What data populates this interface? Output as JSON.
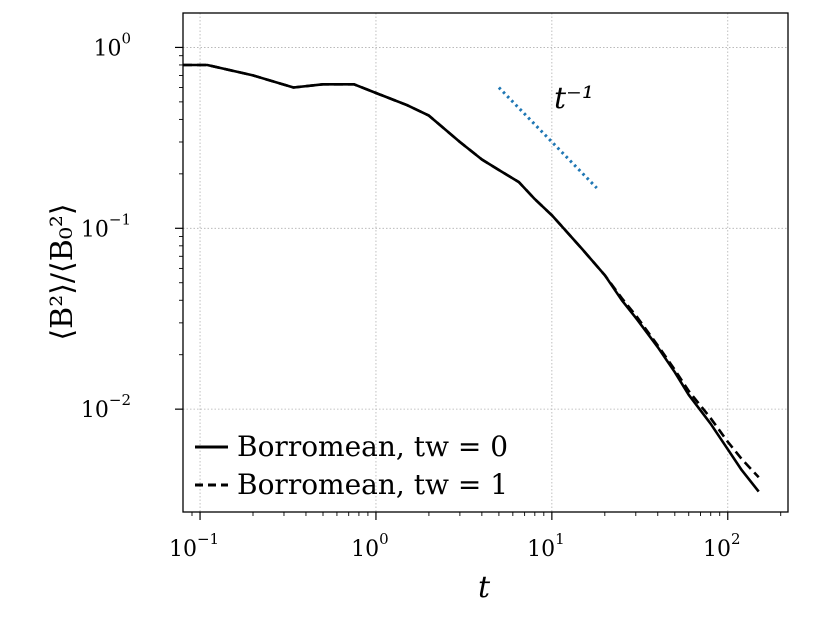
{
  "chart_data": {
    "type": "line",
    "xscale": "log",
    "yscale": "log",
    "xlim": [
      0.08,
      220
    ],
    "ylim": [
      0.0027,
      1.55
    ],
    "grid": true,
    "xlabel": "t",
    "ylabel": "⟨B²⟩/⟨B₀²⟩",
    "x_ticks": [
      {
        "base": "10",
        "exp": "−1",
        "value": 0.1
      },
      {
        "base": "10",
        "exp": "0",
        "value": 1
      },
      {
        "base": "10",
        "exp": "1",
        "value": 10
      },
      {
        "base": "10",
        "exp": "2",
        "value": 100
      }
    ],
    "y_ticks": [
      {
        "base": "10",
        "exp": "0",
        "value": 1
      },
      {
        "base": "10",
        "exp": "−1",
        "value": 0.1
      },
      {
        "base": "10",
        "exp": "−2",
        "value": 0.01
      }
    ],
    "legend_position": "lower-left",
    "series": [
      {
        "name": "Borromean, tw = 0",
        "style": "solid",
        "color": "#000000",
        "x": [
          0.08,
          0.11,
          0.2,
          0.34,
          0.5,
          0.75,
          1.0,
          1.5,
          2.0,
          3.0,
          4.0,
          5.0,
          6.5,
          8.0,
          10.0,
          12.0,
          15.0,
          20.0,
          25.0,
          30.0,
          40.0,
          50.0,
          60.0,
          80.0,
          100.0,
          120.0,
          150.0
        ],
        "y": [
          0.8,
          0.8,
          0.7,
          0.6,
          0.625,
          0.625,
          0.56,
          0.48,
          0.42,
          0.3,
          0.24,
          0.21,
          0.18,
          0.145,
          0.118,
          0.097,
          0.076,
          0.055,
          0.04,
          0.032,
          0.022,
          0.016,
          0.012,
          0.0083,
          0.006,
          0.0046,
          0.0035
        ]
      },
      {
        "name": "Borromean, tw = 1",
        "style": "dashed",
        "color": "#000000",
        "x": [
          0.08,
          0.11,
          0.2,
          0.34,
          0.5,
          0.75,
          1.0,
          1.5,
          2.0,
          3.0,
          4.0,
          5.0,
          6.5,
          8.0,
          10.0,
          12.0,
          15.0,
          20.0,
          25.0,
          30.0,
          40.0,
          50.0,
          60.0,
          80.0,
          100.0,
          120.0,
          150.0
        ],
        "y": [
          0.8,
          0.8,
          0.7,
          0.6,
          0.625,
          0.625,
          0.56,
          0.48,
          0.42,
          0.3,
          0.24,
          0.21,
          0.18,
          0.145,
          0.118,
          0.097,
          0.076,
          0.055,
          0.041,
          0.033,
          0.0225,
          0.0165,
          0.0126,
          0.0089,
          0.0066,
          0.0053,
          0.0042
        ]
      }
    ],
    "reference_line": {
      "label": "t⁻¹",
      "style": "dotted",
      "color": "#1f77b4",
      "x": [
        5.0,
        18.0
      ],
      "y": [
        0.6,
        0.167
      ]
    }
  }
}
